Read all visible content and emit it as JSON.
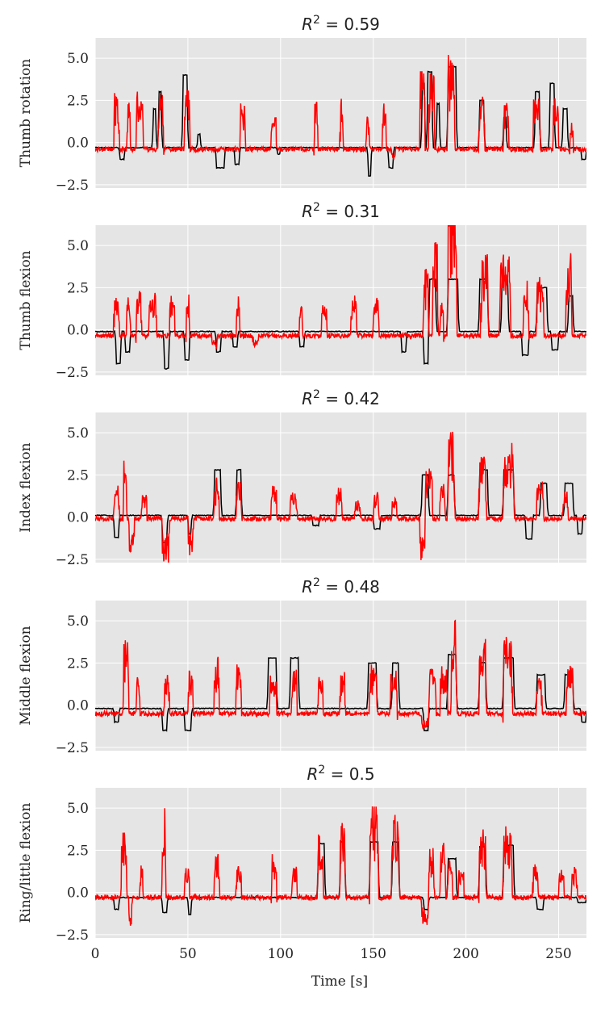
{
  "chart_data": {
    "type": "line",
    "xlabel": "Time [s]",
    "xlim": [
      0,
      265
    ],
    "xticks": [
      0,
      50,
      100,
      150,
      200,
      250
    ],
    "ylim": [
      -2.7,
      6.2
    ],
    "yticks": [
      -2.5,
      0.0,
      2.5,
      5.0
    ],
    "ytick_labels": [
      "−2.5",
      "0.0",
      "2.5",
      "5.0"
    ],
    "grid": true,
    "background": "#e5e5e5",
    "grid_color": "#ffffff",
    "series_colors": {
      "target": "#000000",
      "prediction": "#ff0000"
    },
    "panels": [
      {
        "title_prefix": "R",
        "title_exp": "2",
        "title_value": " = 0.59",
        "ylabel": "Thumb rotation",
        "target_baseline": -0.3,
        "pred_baseline": -0.4,
        "target_events": [
          [
            13,
            16,
            -1.0
          ],
          [
            31,
            33,
            2.0
          ],
          [
            34,
            36,
            3.0
          ],
          [
            47,
            50,
            4.0
          ],
          [
            55,
            57,
            0.5
          ],
          [
            65,
            70,
            -1.5
          ],
          [
            75,
            78,
            -1.3
          ],
          [
            98,
            100,
            -0.7
          ],
          [
            147,
            149,
            -2.0
          ],
          [
            158,
            161,
            -1.5
          ],
          [
            176,
            178,
            3.5
          ],
          [
            179,
            182,
            4.2
          ],
          [
            184,
            186,
            2.3
          ],
          [
            190,
            195,
            4.5
          ],
          [
            207,
            210,
            2.5
          ],
          [
            220,
            222,
            1.5
          ],
          [
            237,
            240,
            3.0
          ],
          [
            245,
            248,
            3.5
          ],
          [
            252,
            255,
            2.0
          ],
          [
            262,
            265,
            -1.0
          ]
        ],
        "pred_events": [
          [
            10,
            13,
            2.0
          ],
          [
            17,
            19,
            1.5
          ],
          [
            22,
            26,
            2.0
          ],
          [
            34,
            37,
            2.0
          ],
          [
            48,
            51,
            2.2
          ],
          [
            78,
            81,
            1.5
          ],
          [
            95,
            98,
            1.0
          ],
          [
            118,
            120,
            1.8
          ],
          [
            132,
            134,
            1.6
          ],
          [
            146,
            148,
            1.0
          ],
          [
            155,
            157,
            1.8
          ],
          [
            160,
            162,
            -0.8
          ],
          [
            175,
            178,
            2.8
          ],
          [
            180,
            183,
            3.5
          ],
          [
            190,
            194,
            3.5
          ],
          [
            207,
            210,
            2.2
          ],
          [
            220,
            223,
            1.5
          ],
          [
            236,
            240,
            2.0
          ],
          [
            247,
            250,
            2.0
          ],
          [
            256,
            258,
            0.8
          ]
        ]
      },
      {
        "title_prefix": "R",
        "title_exp": "2",
        "title_value": " = 0.31",
        "ylabel": "Thumb flexion",
        "target_baseline": -0.1,
        "pred_baseline": -0.35,
        "target_events": [
          [
            11,
            14,
            -2.0
          ],
          [
            16,
            19,
            -1.3
          ],
          [
            37,
            40,
            -2.3
          ],
          [
            48,
            51,
            -1.8
          ],
          [
            65,
            68,
            -1.3
          ],
          [
            74,
            77,
            -1.0
          ],
          [
            110,
            113,
            -1.0
          ],
          [
            165,
            168,
            -1.3
          ],
          [
            177,
            180,
            -2.0
          ],
          [
            180,
            184,
            3.0
          ],
          [
            190,
            196,
            3.0
          ],
          [
            207,
            212,
            3.0
          ],
          [
            219,
            223,
            3.0
          ],
          [
            230,
            234,
            -1.5
          ],
          [
            238,
            244,
            2.5
          ],
          [
            246,
            250,
            -1.2
          ],
          [
            255,
            258,
            2.0
          ]
        ],
        "pred_events": [
          [
            10,
            13,
            1.5
          ],
          [
            17,
            19,
            1.5
          ],
          [
            22,
            25,
            1.5
          ],
          [
            29,
            33,
            1.5
          ],
          [
            40,
            43,
            1.5
          ],
          [
            49,
            51,
            1.5
          ],
          [
            63,
            66,
            -0.8
          ],
          [
            76,
            78,
            1.5
          ],
          [
            85,
            88,
            -0.8
          ],
          [
            110,
            112,
            1.0
          ],
          [
            122,
            125,
            1.2
          ],
          [
            138,
            141,
            1.5
          ],
          [
            150,
            153,
            1.5
          ],
          [
            177,
            180,
            2.5
          ],
          [
            182,
            185,
            4.0
          ],
          [
            186,
            188,
            1.5
          ],
          [
            190,
            195,
            5.5
          ],
          [
            208,
            212,
            3.0
          ],
          [
            218,
            224,
            3.0
          ],
          [
            231,
            234,
            2.0
          ],
          [
            238,
            242,
            2.0
          ],
          [
            254,
            257,
            3.0
          ]
        ]
      },
      {
        "title_prefix": "R",
        "title_exp": "2",
        "title_value": " = 0.42",
        "ylabel": "Index flexion",
        "target_baseline": 0.1,
        "pred_baseline": -0.1,
        "target_events": [
          [
            10,
            13,
            -1.2
          ],
          [
            36,
            39,
            -1.5
          ],
          [
            50,
            52,
            -1.0
          ],
          [
            64,
            68,
            2.8
          ],
          [
            76,
            79,
            2.8
          ],
          [
            117,
            121,
            -0.5
          ],
          [
            150,
            154,
            -0.7
          ],
          [
            176,
            180,
            2.5
          ],
          [
            190,
            194,
            2.5
          ],
          [
            207,
            212,
            2.8
          ],
          [
            220,
            226,
            2.8
          ],
          [
            232,
            236,
            -1.3
          ],
          [
            240,
            244,
            2.0
          ],
          [
            253,
            258,
            2.0
          ],
          [
            260,
            263,
            -1.0
          ]
        ],
        "pred_events": [
          [
            10,
            13,
            1.2
          ],
          [
            15,
            17,
            2.8
          ],
          [
            18,
            21,
            -1.5
          ],
          [
            25,
            28,
            1.0
          ],
          [
            36,
            40,
            -2.0
          ],
          [
            50,
            53,
            -1.8
          ],
          [
            64,
            67,
            1.5
          ],
          [
            76,
            79,
            1.5
          ],
          [
            95,
            98,
            1.5
          ],
          [
            105,
            109,
            1.0
          ],
          [
            130,
            133,
            1.2
          ],
          [
            140,
            143,
            0.8
          ],
          [
            150,
            153,
            1.0
          ],
          [
            160,
            163,
            0.8
          ],
          [
            175,
            178,
            -1.8
          ],
          [
            178,
            182,
            2.0
          ],
          [
            186,
            189,
            1.5
          ],
          [
            190,
            194,
            3.5
          ],
          [
            207,
            211,
            2.5
          ],
          [
            220,
            226,
            3.0
          ],
          [
            238,
            242,
            1.5
          ],
          [
            252,
            255,
            1.0
          ]
        ]
      },
      {
        "title_prefix": "R",
        "title_exp": "2",
        "title_value": " = 0.48",
        "ylabel": "Middle flexion",
        "target_baseline": -0.2,
        "pred_baseline": -0.5,
        "target_events": [
          [
            10,
            13,
            -1.0
          ],
          [
            36,
            39,
            -1.5
          ],
          [
            48,
            52,
            -1.5
          ],
          [
            93,
            98,
            2.8
          ],
          [
            105,
            110,
            2.8
          ],
          [
            147,
            152,
            2.5
          ],
          [
            160,
            164,
            2.5
          ],
          [
            177,
            180,
            -1.5
          ],
          [
            190,
            195,
            3.0
          ],
          [
            207,
            211,
            2.5
          ],
          [
            220,
            226,
            2.8
          ],
          [
            238,
            243,
            1.8
          ],
          [
            253,
            258,
            1.8
          ],
          [
            262,
            265,
            -1.0
          ]
        ],
        "pred_events": [
          [
            15,
            18,
            2.5
          ],
          [
            22,
            24,
            1.0
          ],
          [
            37,
            40,
            1.2
          ],
          [
            50,
            53,
            1.2
          ],
          [
            64,
            67,
            1.8
          ],
          [
            76,
            79,
            1.5
          ],
          [
            94,
            98,
            1.0
          ],
          [
            106,
            109,
            1.5
          ],
          [
            120,
            123,
            1.0
          ],
          [
            132,
            135,
            1.2
          ],
          [
            148,
            152,
            1.5
          ],
          [
            159,
            163,
            1.2
          ],
          [
            176,
            180,
            -1.2
          ],
          [
            180,
            184,
            1.5
          ],
          [
            186,
            190,
            1.5
          ],
          [
            192,
            195,
            3.8
          ],
          [
            207,
            211,
            2.5
          ],
          [
            220,
            225,
            2.8
          ],
          [
            238,
            241,
            1.5
          ],
          [
            254,
            258,
            1.5
          ]
        ]
      },
      {
        "title_prefix": "R",
        "title_exp": "2",
        "title_value": " = 0.5",
        "ylabel": "Ring/little flexion",
        "target_baseline": -0.3,
        "pred_baseline": -0.3,
        "target_events": [
          [
            10,
            13,
            -1.0
          ],
          [
            36,
            39,
            -1.2
          ],
          [
            50,
            52,
            -1.3
          ],
          [
            120,
            124,
            2.9
          ],
          [
            132,
            135,
            3.0
          ],
          [
            148,
            153,
            3.0
          ],
          [
            160,
            164,
            3.0
          ],
          [
            177,
            180,
            -1.0
          ],
          [
            190,
            195,
            2.0
          ],
          [
            207,
            211,
            2.7
          ],
          [
            220,
            226,
            2.8
          ],
          [
            238,
            242,
            -1.0
          ],
          [
            260,
            265,
            -0.6
          ]
        ],
        "pred_events": [
          [
            14,
            17,
            2.5
          ],
          [
            18,
            20,
            -1.5
          ],
          [
            24,
            26,
            1.0
          ],
          [
            36,
            38,
            3.5
          ],
          [
            48,
            51,
            1.0
          ],
          [
            64,
            67,
            1.5
          ],
          [
            76,
            79,
            1.0
          ],
          [
            95,
            98,
            1.5
          ],
          [
            106,
            109,
            1.0
          ],
          [
            120,
            123,
            2.3
          ],
          [
            132,
            135,
            2.8
          ],
          [
            148,
            153,
            3.5
          ],
          [
            160,
            164,
            3.3
          ],
          [
            176,
            180,
            -1.5
          ],
          [
            180,
            183,
            1.8
          ],
          [
            186,
            189,
            2.0
          ],
          [
            190,
            193,
            1.5
          ],
          [
            196,
            199,
            1.2
          ],
          [
            207,
            211,
            2.5
          ],
          [
            220,
            225,
            2.7
          ],
          [
            236,
            239,
            1.0
          ],
          [
            250,
            253,
            1.0
          ],
          [
            257,
            260,
            1.0
          ]
        ]
      }
    ]
  }
}
